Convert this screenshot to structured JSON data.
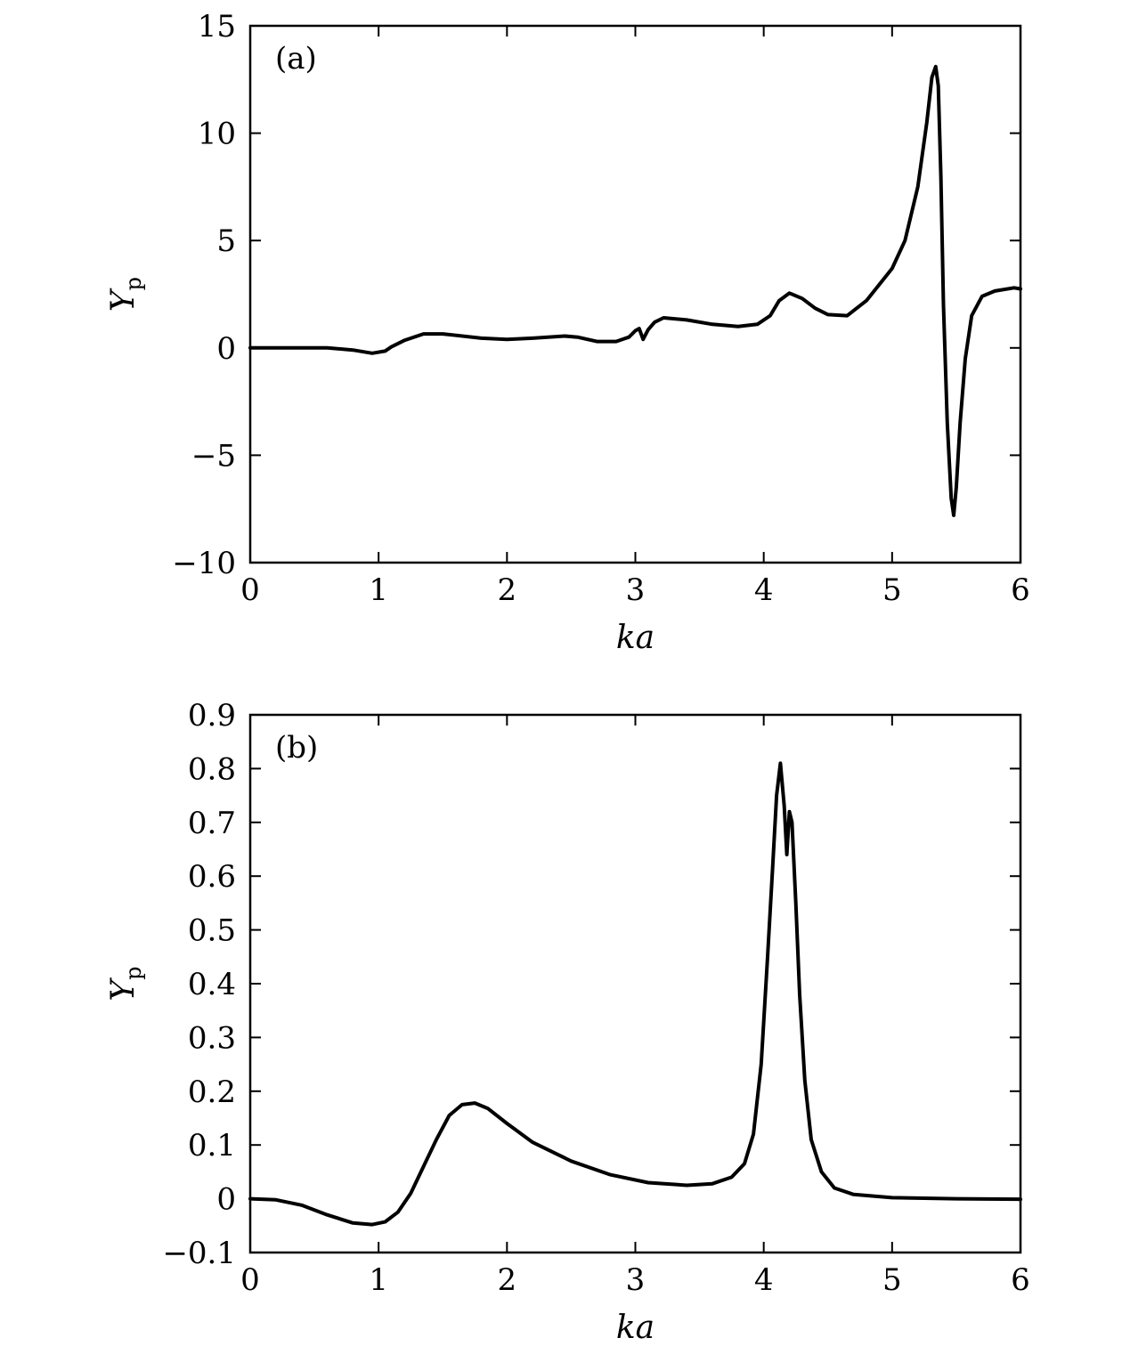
{
  "chart_data": [
    {
      "type": "line",
      "panel_label": "(a)",
      "xlabel": "ka",
      "ylabel_main": "Y",
      "ylabel_sub": "p",
      "xlim": [
        0,
        6
      ],
      "ylim": [
        -10,
        15
      ],
      "x_ticks": [
        0,
        1,
        2,
        3,
        4,
        5,
        6
      ],
      "x_tick_labels": [
        "0",
        "1",
        "2",
        "3",
        "4",
        "5",
        "6"
      ],
      "y_ticks": [
        -10,
        -5,
        0,
        5,
        10,
        15
      ],
      "y_tick_labels": [
        "−10",
        "−5",
        "0",
        "5",
        "10",
        "15"
      ],
      "grid": false,
      "series": [
        {
          "x": [
            0,
            0.3,
            0.6,
            0.8,
            0.95,
            1.05,
            1.1,
            1.2,
            1.35,
            1.5,
            1.8,
            2.0,
            2.2,
            2.45,
            2.55,
            2.7,
            2.85,
            2.95,
            3.0,
            3.03,
            3.06,
            3.1,
            3.15,
            3.22,
            3.4,
            3.6,
            3.8,
            3.95,
            4.05,
            4.12,
            4.2,
            4.3,
            4.4,
            4.5,
            4.65,
            4.8,
            5.0,
            5.1,
            5.2,
            5.27,
            5.31,
            5.34,
            5.36,
            5.38,
            5.4,
            5.43,
            5.46,
            5.48,
            5.5,
            5.53,
            5.57,
            5.62,
            5.7,
            5.8,
            5.95,
            6.0
          ],
          "y": [
            0,
            0,
            0,
            -0.1,
            -0.25,
            -0.15,
            0.05,
            0.35,
            0.65,
            0.65,
            0.45,
            0.4,
            0.45,
            0.55,
            0.5,
            0.3,
            0.3,
            0.5,
            0.8,
            0.9,
            0.4,
            0.85,
            1.2,
            1.4,
            1.3,
            1.1,
            1.0,
            1.1,
            1.5,
            2.2,
            2.55,
            2.3,
            1.85,
            1.55,
            1.5,
            2.2,
            3.7,
            5.0,
            7.5,
            10.5,
            12.6,
            13.1,
            12.2,
            8.0,
            2.0,
            -3.5,
            -7.0,
            -7.8,
            -6.5,
            -3.5,
            -0.5,
            1.5,
            2.4,
            2.65,
            2.8,
            2.75
          ]
        }
      ]
    },
    {
      "type": "line",
      "panel_label": "(b)",
      "xlabel": "ka",
      "ylabel_main": "Y",
      "ylabel_sub": "p",
      "xlim": [
        0,
        6
      ],
      "ylim": [
        -0.1,
        0.9
      ],
      "x_ticks": [
        0,
        1,
        2,
        3,
        4,
        5,
        6
      ],
      "x_tick_labels": [
        "0",
        "1",
        "2",
        "3",
        "4",
        "5",
        "6"
      ],
      "y_ticks": [
        -0.1,
        0,
        0.1,
        0.2,
        0.3,
        0.4,
        0.5,
        0.6,
        0.7,
        0.8,
        0.9
      ],
      "y_tick_labels": [
        "−0.1",
        "0",
        "0.1",
        "0.2",
        "0.3",
        "0.4",
        "0.5",
        "0.6",
        "0.7",
        "0.8",
        "0.9"
      ],
      "grid": false,
      "series": [
        {
          "x": [
            0,
            0.2,
            0.4,
            0.6,
            0.8,
            0.95,
            1.05,
            1.15,
            1.25,
            1.35,
            1.45,
            1.55,
            1.65,
            1.75,
            1.85,
            2.0,
            2.2,
            2.5,
            2.8,
            3.1,
            3.4,
            3.6,
            3.75,
            3.85,
            3.92,
            3.98,
            4.03,
            4.07,
            4.1,
            4.13,
            4.16,
            4.18,
            4.2,
            4.22,
            4.25,
            4.28,
            4.32,
            4.37,
            4.45,
            4.55,
            4.7,
            5.0,
            5.5,
            6.0
          ],
          "y": [
            0,
            -0.002,
            -0.012,
            -0.03,
            -0.045,
            -0.048,
            -0.043,
            -0.025,
            0.01,
            0.06,
            0.11,
            0.155,
            0.175,
            0.178,
            0.168,
            0.14,
            0.105,
            0.07,
            0.045,
            0.03,
            0.025,
            0.028,
            0.04,
            0.065,
            0.12,
            0.25,
            0.45,
            0.62,
            0.75,
            0.81,
            0.73,
            0.64,
            0.72,
            0.7,
            0.55,
            0.38,
            0.22,
            0.11,
            0.05,
            0.02,
            0.008,
            0.002,
            0,
            -0.001
          ]
        }
      ]
    }
  ]
}
